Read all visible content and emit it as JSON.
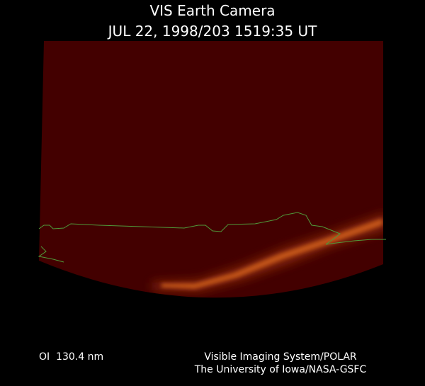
{
  "header": {
    "title": "VIS Earth Camera",
    "timestamp": "JUL 22, 1998/203 1519:35 UT"
  },
  "footer": {
    "filter": "OI  130.4 nm",
    "credit_line1": "Visible Imaging System/POLAR",
    "credit_line2": "The University of Iowa/NASA-GSFC"
  }
}
